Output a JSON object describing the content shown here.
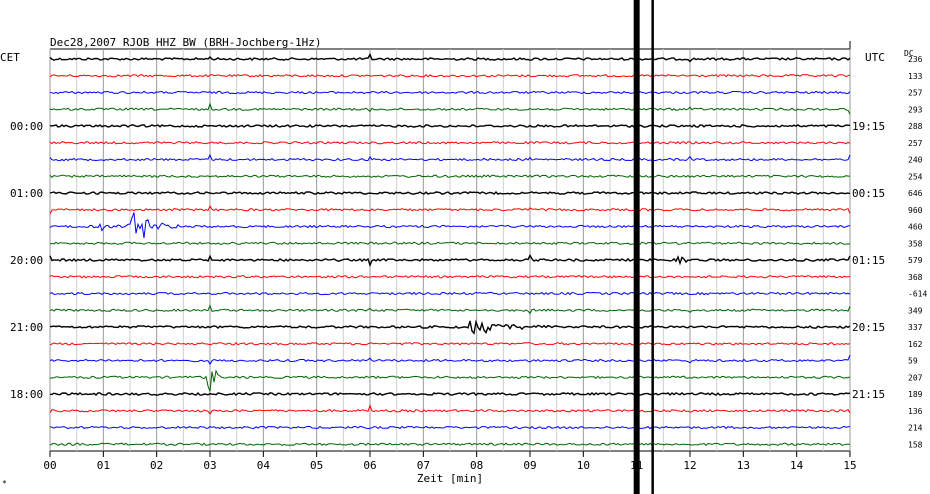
{
  "header": {
    "title": "Dec28,2007  RJOB HHZ BW (BRH-Jochberg-1Hz)",
    "left_tz": "CET",
    "right_tz": "UTC",
    "dc_label": "DC"
  },
  "chart_data": {
    "type": "line",
    "title": "Dec28,2007  RJOB HHZ BW (BRH-Jochberg-1Hz)",
    "xlabel": "Zeit [min]",
    "ylabel": "",
    "xlim": [
      0,
      15
    ],
    "x_ticks": [
      "00",
      "01",
      "02",
      "03",
      "04",
      "05",
      "06",
      "07",
      "08",
      "09",
      "10",
      "11",
      "12",
      "13",
      "14",
      "15"
    ],
    "grid": true,
    "trace_colors": [
      "#000000",
      "#ff0000",
      "#0000ff",
      "#006400"
    ],
    "left_time_labels": [
      "00:00",
      "01:00",
      "20:00",
      "21:00",
      "18:00"
    ],
    "right_time_labels": [
      "19:15",
      "00:15",
      "01:15",
      "20:15",
      "21:15"
    ],
    "dc_values": [
      "236",
      "133",
      "257",
      "293",
      "288",
      "257",
      "240",
      "254",
      "646",
      "960",
      "460",
      "358",
      "579",
      "368",
      "-614",
      "349",
      "337",
      "162",
      "59",
      "207",
      "189",
      "136",
      "214",
      "158"
    ],
    "events": [
      {
        "trace": 10,
        "x_min": 1.6,
        "amplitude": 1.3,
        "width": 0.8,
        "label": ""
      },
      {
        "trace": 10,
        "x_min": 0.9,
        "amplitude": 0.35,
        "width": 0.6,
        "label": ""
      },
      {
        "trace": 16,
        "x_min": 7.9,
        "amplitude": 0.55,
        "width": 1.8,
        "label": ""
      },
      {
        "trace": 19,
        "x_min": 3.0,
        "amplitude": 1.0,
        "width": 0.35,
        "label": ""
      },
      {
        "trace": 12,
        "x_min": 11.8,
        "amplitude": 0.3,
        "width": 0.3,
        "label": ""
      }
    ],
    "markers_min": [
      11.0,
      11.3
    ]
  },
  "footer": {
    "xlabel": "Zeit [min]",
    "corner_mark": "*"
  }
}
